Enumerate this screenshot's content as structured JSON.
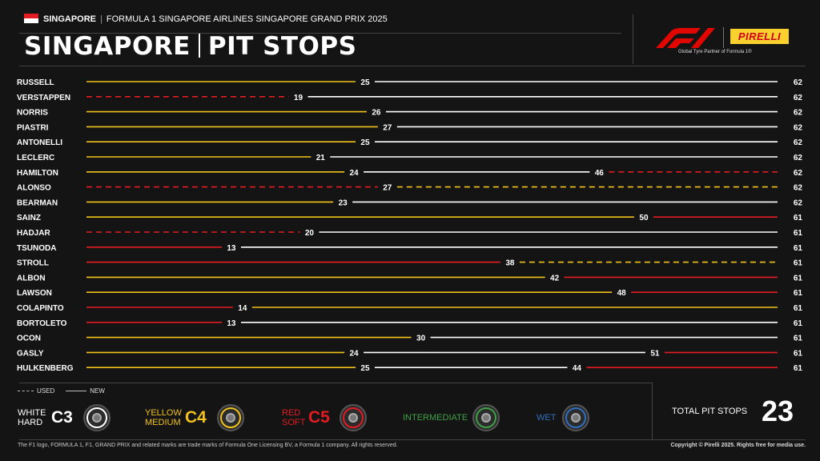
{
  "header": {
    "location": "SINGAPORE",
    "event": "FORMULA 1 SINGAPORE AIRLINES SINGAPORE GRAND PRIX 2025",
    "title_left": "SINGAPORE",
    "title_right": "PIT STOPS",
    "partner_text": "Global Tyre Partner of Formula 1®",
    "pirelli_logo_text": "PIRELLI"
  },
  "colors": {
    "hard": "#ffffff",
    "medium": "#f2c21b",
    "soft": "#e31b23",
    "intermediate": "#3fa046",
    "wet": "#2f6fbf",
    "background": "#141414"
  },
  "chart_data": {
    "type": "bar",
    "orientation": "horizontal stint timeline",
    "x_unit": "lap",
    "xlim": [
      0,
      62
    ],
    "drivers": [
      {
        "name": "RUSSELL",
        "stints": [
          {
            "compound": "medium",
            "start": 0,
            "end": 25,
            "tyre": "new"
          },
          {
            "compound": "hard",
            "start": 25,
            "end": 62,
            "tyre": "new"
          }
        ]
      },
      {
        "name": "VERSTAPPEN",
        "stints": [
          {
            "compound": "soft",
            "start": 0,
            "end": 19,
            "tyre": "used"
          },
          {
            "compound": "hard",
            "start": 19,
            "end": 62,
            "tyre": "new"
          }
        ]
      },
      {
        "name": "NORRIS",
        "stints": [
          {
            "compound": "medium",
            "start": 0,
            "end": 26,
            "tyre": "new"
          },
          {
            "compound": "hard",
            "start": 26,
            "end": 62,
            "tyre": "new"
          }
        ]
      },
      {
        "name": "PIASTRI",
        "stints": [
          {
            "compound": "medium",
            "start": 0,
            "end": 27,
            "tyre": "new"
          },
          {
            "compound": "hard",
            "start": 27,
            "end": 62,
            "tyre": "new"
          }
        ]
      },
      {
        "name": "ANTONELLI",
        "stints": [
          {
            "compound": "medium",
            "start": 0,
            "end": 25,
            "tyre": "new"
          },
          {
            "compound": "hard",
            "start": 25,
            "end": 62,
            "tyre": "new"
          }
        ]
      },
      {
        "name": "LECLERC",
        "stints": [
          {
            "compound": "medium",
            "start": 0,
            "end": 21,
            "tyre": "new"
          },
          {
            "compound": "hard",
            "start": 21,
            "end": 62,
            "tyre": "new"
          }
        ]
      },
      {
        "name": "HAMILTON",
        "stints": [
          {
            "compound": "medium",
            "start": 0,
            "end": 24,
            "tyre": "new"
          },
          {
            "compound": "hard",
            "start": 24,
            "end": 46,
            "tyre": "new"
          },
          {
            "compound": "soft",
            "start": 46,
            "end": 62,
            "tyre": "used"
          }
        ]
      },
      {
        "name": "ALONSO",
        "stints": [
          {
            "compound": "soft",
            "start": 0,
            "end": 27,
            "tyre": "used"
          },
          {
            "compound": "medium",
            "start": 27,
            "end": 62,
            "tyre": "used"
          }
        ]
      },
      {
        "name": "BEARMAN",
        "stints": [
          {
            "compound": "medium",
            "start": 0,
            "end": 23,
            "tyre": "new"
          },
          {
            "compound": "hard",
            "start": 23,
            "end": 62,
            "tyre": "new"
          }
        ]
      },
      {
        "name": "SAINZ",
        "stints": [
          {
            "compound": "medium",
            "start": 0,
            "end": 50,
            "tyre": "new"
          },
          {
            "compound": "soft",
            "start": 50,
            "end": 61,
            "tyre": "new"
          }
        ]
      },
      {
        "name": "HADJAR",
        "stints": [
          {
            "compound": "soft",
            "start": 0,
            "end": 20,
            "tyre": "used"
          },
          {
            "compound": "hard",
            "start": 20,
            "end": 61,
            "tyre": "new"
          }
        ]
      },
      {
        "name": "TSUNODA",
        "stints": [
          {
            "compound": "soft",
            "start": 0,
            "end": 13,
            "tyre": "new"
          },
          {
            "compound": "hard",
            "start": 13,
            "end": 61,
            "tyre": "new"
          }
        ]
      },
      {
        "name": "STROLL",
        "stints": [
          {
            "compound": "soft",
            "start": 0,
            "end": 38,
            "tyre": "new"
          },
          {
            "compound": "medium",
            "start": 38,
            "end": 61,
            "tyre": "used"
          }
        ]
      },
      {
        "name": "ALBON",
        "stints": [
          {
            "compound": "medium",
            "start": 0,
            "end": 42,
            "tyre": "new"
          },
          {
            "compound": "soft",
            "start": 42,
            "end": 61,
            "tyre": "new"
          }
        ]
      },
      {
        "name": "LAWSON",
        "stints": [
          {
            "compound": "medium",
            "start": 0,
            "end": 48,
            "tyre": "new"
          },
          {
            "compound": "soft",
            "start": 48,
            "end": 61,
            "tyre": "new"
          }
        ]
      },
      {
        "name": "COLAPINTO",
        "stints": [
          {
            "compound": "soft",
            "start": 0,
            "end": 14,
            "tyre": "new"
          },
          {
            "compound": "medium",
            "start": 14,
            "end": 61,
            "tyre": "new"
          }
        ]
      },
      {
        "name": "BORTOLETO",
        "stints": [
          {
            "compound": "soft",
            "start": 0,
            "end": 13,
            "tyre": "new"
          },
          {
            "compound": "hard",
            "start": 13,
            "end": 61,
            "tyre": "new"
          }
        ]
      },
      {
        "name": "OCON",
        "stints": [
          {
            "compound": "medium",
            "start": 0,
            "end": 30,
            "tyre": "new"
          },
          {
            "compound": "hard",
            "start": 30,
            "end": 61,
            "tyre": "new"
          }
        ]
      },
      {
        "name": "GASLY",
        "stints": [
          {
            "compound": "medium",
            "start": 0,
            "end": 24,
            "tyre": "new"
          },
          {
            "compound": "hard",
            "start": 24,
            "end": 51,
            "tyre": "new"
          },
          {
            "compound": "soft",
            "start": 51,
            "end": 61,
            "tyre": "new"
          }
        ]
      },
      {
        "name": "HULKENBERG",
        "stints": [
          {
            "compound": "medium",
            "start": 0,
            "end": 25,
            "tyre": "new"
          },
          {
            "compound": "hard",
            "start": 25,
            "end": 44,
            "tyre": "new"
          },
          {
            "compound": "soft",
            "start": 44,
            "end": 61,
            "tyre": "new"
          }
        ]
      }
    ]
  },
  "legend": {
    "used": "USED",
    "new": "NEW",
    "compounds": [
      {
        "line1": "WHITE",
        "line2": "HARD",
        "code": "C3",
        "color": "#ffffff"
      },
      {
        "line1": "YELLOW",
        "line2": "MEDIUM",
        "code": "C4",
        "color": "#f2c21b"
      },
      {
        "line1": "RED",
        "line2": "SOFT",
        "code": "C5",
        "color": "#e31b23"
      },
      {
        "line1": "INTERMEDIATE",
        "line2": "",
        "code": "",
        "color": "#3fa046"
      },
      {
        "line1": "WET",
        "line2": "",
        "code": "",
        "color": "#2f6fbf"
      }
    ]
  },
  "totals": {
    "label": "TOTAL PIT STOPS",
    "value": "23"
  },
  "footer": {
    "trademark": "The F1 logo, FORMULA 1, F1, GRAND PRIX and related marks are trade marks of Formula One Licensing BV, a Formula 1 company. All rights reserved.",
    "copyright": "Copyright © Pirelli 2025. Rights free for media use."
  }
}
